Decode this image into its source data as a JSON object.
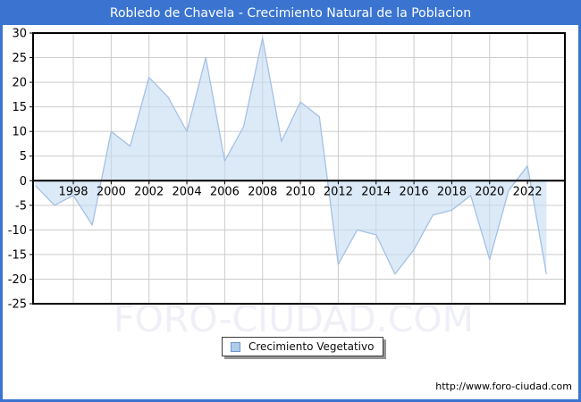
{
  "window": {
    "title_bar_color": "#3a74d0",
    "background": "#ffffff"
  },
  "watermark_text": "FORO-CIUDAD.COM",
  "footer": {
    "url": "http://www.foro-ciudad.com"
  },
  "legend": {
    "label": "Crecimiento Vegetativo",
    "swatch_fill": "#aecceb",
    "swatch_border": "#6e97c8"
  },
  "chart_data": {
    "type": "area",
    "title": "Robledo de Chavela - Crecimiento Natural de la Poblacion",
    "series_name": "Crecimiento Vegetativo",
    "years": [
      1996,
      1997,
      1998,
      1999,
      2000,
      2001,
      2002,
      2003,
      2004,
      2005,
      2006,
      2007,
      2008,
      2009,
      2010,
      2011,
      2012,
      2013,
      2014,
      2015,
      2016,
      2017,
      2018,
      2019,
      2020,
      2021,
      2022,
      2023
    ],
    "values": [
      -1,
      -5,
      -3,
      -9,
      10,
      7,
      21,
      17,
      10,
      25,
      4,
      11,
      29,
      8,
      16,
      13,
      -17,
      -10,
      -11,
      -19,
      -14,
      -7,
      -6,
      -3,
      -16,
      -2,
      3,
      -19
    ],
    "ylim": [
      -25,
      30
    ],
    "yticks": [
      30,
      25,
      20,
      15,
      10,
      5,
      0,
      -5,
      -10,
      -15,
      -20,
      -25
    ],
    "xtick_years": [
      1998,
      2000,
      2002,
      2004,
      2006,
      2008,
      2010,
      2012,
      2014,
      2016,
      2018,
      2020,
      2022
    ],
    "grid": true,
    "grid_color": "#cccccc",
    "axis_color": "#000000",
    "line_color": "#a4c0e5",
    "fill_color": "#c5dcf3",
    "fill_opacity": 0.6,
    "baseline": 0,
    "legend_position": "bottom-center"
  }
}
